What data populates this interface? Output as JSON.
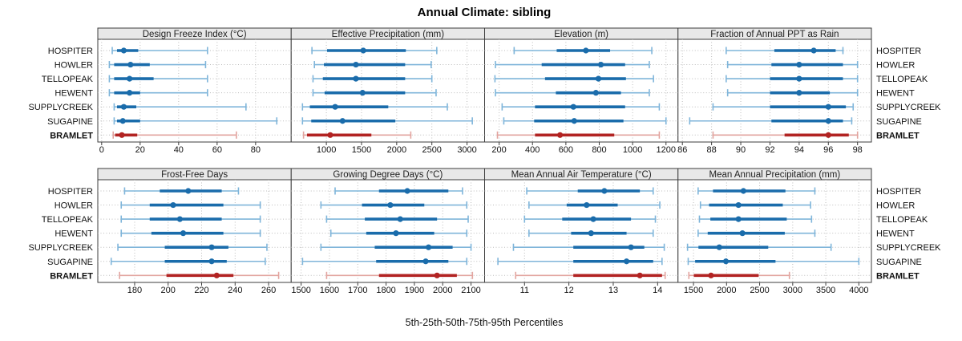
{
  "title": "Annual Climate: sibling",
  "caption": "5th-25th-50th-75th-95th Percentiles",
  "sites": [
    "HOSPITER",
    "HOWLER",
    "TELLOPEAK",
    "HEWENT",
    "SUPPLYCREEK",
    "SUGAPINE",
    "BRAMLET"
  ],
  "highlight_site": "BRAMLET",
  "colors": {
    "blue_dark": "#1a6cab",
    "blue_light": "#7fb5da",
    "red_dark": "#b22322",
    "red_light": "#e2a49f",
    "grid": "#bdbdbd",
    "border": "#3c3c3c",
    "header_fill": "#e8e8e8",
    "text": "#111111"
  },
  "chart_data": {
    "type": "percentile_dotplot",
    "percentile_labels": [
      "5th",
      "25th",
      "50th",
      "75th",
      "95th"
    ],
    "grid": "dotted",
    "legend_position": "none",
    "panels": [
      {
        "title": "Design Freeze Index (°C)",
        "row": 0,
        "col": 0,
        "ticks": [
          0,
          20,
          40,
          60,
          80
        ],
        "range": [
          -2,
          98.5
        ],
        "series": {
          "HOSPITER": [
            5.5,
            8,
            11.5,
            19,
            55
          ],
          "HOWLER": [
            4,
            6.5,
            15,
            25,
            54
          ],
          "TELLOPEAK": [
            4,
            6.5,
            14.5,
            27,
            55
          ],
          "HEWENT": [
            4,
            6.5,
            14.5,
            20,
            55
          ],
          "SUPPLYCREEK": [
            6.5,
            8,
            11.5,
            18,
            75
          ],
          "SUGAPINE": [
            6.5,
            8,
            11,
            20,
            91
          ],
          "BRAMLET": [
            6,
            7,
            10.5,
            18.5,
            70
          ]
        }
      },
      {
        "title": "Effective Precipitation (mm)",
        "row": 0,
        "col": 1,
        "ticks": [
          1000,
          1500,
          2000,
          2500,
          3000
        ],
        "range": [
          500,
          3250
        ],
        "series": {
          "HOSPITER": [
            795,
            1010,
            1525,
            2130,
            2570
          ],
          "HOWLER": [
            830,
            965,
            1420,
            2120,
            2490
          ],
          "TELLOPEAK": [
            810,
            950,
            1420,
            2120,
            2500
          ],
          "HEWENT": [
            810,
            975,
            1515,
            2120,
            2560
          ],
          "SUPPLYCREEK": [
            660,
            765,
            1125,
            1880,
            2720
          ],
          "SUGAPINE": [
            660,
            785,
            1230,
            1980,
            3075
          ],
          "BRAMLET": [
            675,
            725,
            1055,
            1640,
            2200
          ]
        }
      },
      {
        "title": "Elevation (m)",
        "row": 0,
        "col": 2,
        "ticks": [
          200,
          400,
          600,
          800,
          1000,
          1200
        ],
        "range": [
          113,
          1272
        ],
        "series": {
          "HOSPITER": [
            290,
            545,
            720,
            865,
            1115
          ],
          "HOWLER": [
            178,
            455,
            810,
            955,
            1100
          ],
          "TELLOPEAK": [
            175,
            475,
            795,
            960,
            1125
          ],
          "HEWENT": [
            178,
            540,
            780,
            930,
            1100
          ],
          "SUPPLYCREEK": [
            218,
            415,
            645,
            955,
            1160
          ],
          "SUGAPINE": [
            228,
            410,
            650,
            945,
            1200
          ],
          "BRAMLET": [
            190,
            415,
            565,
            890,
            1160
          ]
        }
      },
      {
        "title": "Fraction of Annual PPT as Rain",
        "row": 0,
        "col": 3,
        "ticks": [
          86,
          88,
          90,
          92,
          94,
          96,
          98
        ],
        "range": [
          85.7,
          98.95
        ],
        "series": {
          "HOSPITER": [
            89,
            92.3,
            95,
            96.5,
            97
          ],
          "HOWLER": [
            89.1,
            92.1,
            94,
            97,
            98
          ],
          "TELLOPEAK": [
            89,
            92,
            94,
            97,
            98
          ],
          "HEWENT": [
            89.1,
            92,
            94,
            96.1,
            98
          ],
          "SUPPLYCREEK": [
            88.1,
            92,
            96,
            97.2,
            97.7
          ],
          "SUGAPINE": [
            86.5,
            92.1,
            96,
            97,
            97.6
          ],
          "BRAMLET": [
            88.1,
            93,
            96,
            97.4,
            98
          ]
        }
      },
      {
        "title": "Frost-Free Days",
        "row": 1,
        "col": 0,
        "ticks": [
          180,
          200,
          220,
          240,
          260
        ],
        "range": [
          158,
          273.5
        ],
        "series": {
          "HOSPITER": [
            174,
            195,
            212,
            232,
            242
          ],
          "HOWLER": [
            172,
            189,
            203,
            233,
            255
          ],
          "TELLOPEAK": [
            172,
            189,
            207,
            232,
            255
          ],
          "HEWENT": [
            172,
            190,
            209,
            233,
            255
          ],
          "SUPPLYCREEK": [
            170,
            198,
            226,
            236,
            259
          ],
          "SUGAPINE": [
            166,
            198,
            226,
            235,
            258
          ],
          "BRAMLET": [
            171,
            199,
            229,
            239,
            266
          ]
        }
      },
      {
        "title": "Growing Degree Days (°C)",
        "row": 1,
        "col": 1,
        "ticks": [
          1500,
          1600,
          1700,
          1800,
          1900,
          2000,
          2100
        ],
        "range": [
          1465,
          2148
        ],
        "series": {
          "HOSPITER": [
            1620,
            1775,
            1875,
            2020,
            2070
          ],
          "HOWLER": [
            1570,
            1715,
            1815,
            1935,
            2085
          ],
          "TELLOPEAK": [
            1590,
            1725,
            1850,
            1980,
            2090
          ],
          "HEWENT": [
            1605,
            1730,
            1835,
            1970,
            2085
          ],
          "SUPPLYCREEK": [
            1570,
            1760,
            1950,
            2035,
            2100
          ],
          "SUGAPINE": [
            1505,
            1765,
            1940,
            2020,
            2085
          ],
          "BRAMLET": [
            1590,
            1775,
            1980,
            2050,
            2105
          ]
        }
      },
      {
        "title": "Mean Annual Air Temperature (°C)",
        "row": 1,
        "col": 2,
        "ticks": [
          11,
          12,
          13,
          14
        ],
        "range": [
          10.1,
          14.46
        ],
        "series": {
          "HOSPITER": [
            11.05,
            12.2,
            12.8,
            13.6,
            13.9
          ],
          "HOWLER": [
            11.1,
            11.95,
            12.4,
            13.1,
            14.05
          ],
          "TELLOPEAK": [
            11.0,
            11.85,
            12.55,
            13.4,
            13.95
          ],
          "HEWENT": [
            11.1,
            12.05,
            12.5,
            13.3,
            13.9
          ],
          "SUPPLYCREEK": [
            10.75,
            12.1,
            13.4,
            13.7,
            14.15
          ],
          "SUGAPINE": [
            10.4,
            12.1,
            13.3,
            13.9,
            14.1
          ],
          "BRAMLET": [
            10.8,
            12.1,
            13.6,
            14.1,
            14.17
          ]
        }
      },
      {
        "title": "Mean Annual Precipitation (mm)",
        "row": 1,
        "col": 3,
        "ticks": [
          1500,
          2000,
          2500,
          3000,
          3500,
          4000
        ],
        "range": [
          1266,
          4190
        ],
        "series": {
          "HOSPITER": [
            1570,
            1795,
            2255,
            2890,
            3335
          ],
          "HOWLER": [
            1605,
            1735,
            2180,
            2850,
            3270
          ],
          "TELLOPEAK": [
            1590,
            1755,
            2180,
            2910,
            3285
          ],
          "HEWENT": [
            1570,
            1715,
            2240,
            2880,
            3335
          ],
          "SUPPLYCREEK": [
            1410,
            1575,
            1890,
            2630,
            3580
          ],
          "SUGAPINE": [
            1420,
            1525,
            1990,
            2740,
            4000
          ],
          "BRAMLET": [
            1430,
            1505,
            1765,
            2485,
            2950
          ]
        }
      }
    ]
  }
}
